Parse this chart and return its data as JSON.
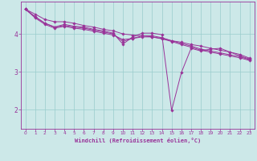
{
  "background_color": "#cce8e8",
  "grid_color": "#99cccc",
  "line_color": "#993399",
  "axis_color": "#993399",
  "xlabel": "Windchill (Refroidissement éolien,°C)",
  "xlim": [
    -0.5,
    23.5
  ],
  "ylim": [
    1.5,
    4.85
  ],
  "yticks": [
    2,
    3,
    4
  ],
  "xticks": [
    0,
    1,
    2,
    3,
    4,
    5,
    6,
    7,
    8,
    9,
    10,
    11,
    12,
    13,
    14,
    15,
    16,
    17,
    18,
    19,
    20,
    21,
    22,
    23
  ],
  "lines": [
    {
      "x": [
        0,
        1,
        2,
        3,
        4,
        5,
        6,
        7,
        8,
        9,
        10,
        11,
        12,
        13,
        14,
        15,
        16,
        17,
        18,
        19,
        20,
        21,
        22,
        23
      ],
      "y": [
        4.65,
        4.52,
        4.38,
        4.32,
        4.32,
        4.28,
        4.22,
        4.18,
        4.12,
        4.08,
        4.0,
        3.97,
        3.95,
        3.92,
        3.88,
        3.82,
        3.78,
        3.72,
        3.68,
        3.62,
        3.57,
        3.52,
        3.46,
        3.36
      ]
    },
    {
      "x": [
        0,
        1,
        2,
        3,
        4,
        5,
        6,
        7,
        8,
        9,
        10,
        11,
        12,
        13,
        14,
        15,
        16,
        17,
        18,
        19,
        20,
        21,
        22,
        23
      ],
      "y": [
        4.65,
        4.45,
        4.28,
        4.18,
        4.25,
        4.2,
        4.18,
        4.12,
        4.08,
        4.02,
        3.73,
        3.92,
        4.02,
        4.02,
        3.98,
        1.98,
        2.98,
        3.62,
        3.55,
        3.6,
        3.62,
        3.52,
        3.42,
        3.34
      ]
    },
    {
      "x": [
        0,
        1,
        2,
        3,
        4,
        5,
        6,
        7,
        8,
        9,
        10,
        11,
        12,
        13,
        14,
        15,
        16,
        17,
        18,
        19,
        20,
        21,
        22,
        23
      ],
      "y": [
        4.65,
        4.45,
        4.28,
        4.18,
        4.22,
        4.18,
        4.15,
        4.1,
        4.05,
        4.0,
        3.8,
        3.88,
        3.95,
        3.95,
        3.9,
        3.82,
        3.75,
        3.68,
        3.6,
        3.55,
        3.5,
        3.45,
        3.4,
        3.32
      ]
    },
    {
      "x": [
        0,
        1,
        2,
        3,
        4,
        5,
        6,
        7,
        8,
        9,
        10,
        11,
        12,
        13,
        14,
        15,
        16,
        17,
        18,
        19,
        20,
        21,
        22,
        23
      ],
      "y": [
        4.65,
        4.42,
        4.25,
        4.15,
        4.2,
        4.15,
        4.12,
        4.07,
        4.02,
        3.97,
        3.85,
        3.88,
        3.92,
        3.92,
        3.87,
        3.8,
        3.72,
        3.65,
        3.57,
        3.52,
        3.47,
        3.42,
        3.37,
        3.3
      ]
    }
  ]
}
